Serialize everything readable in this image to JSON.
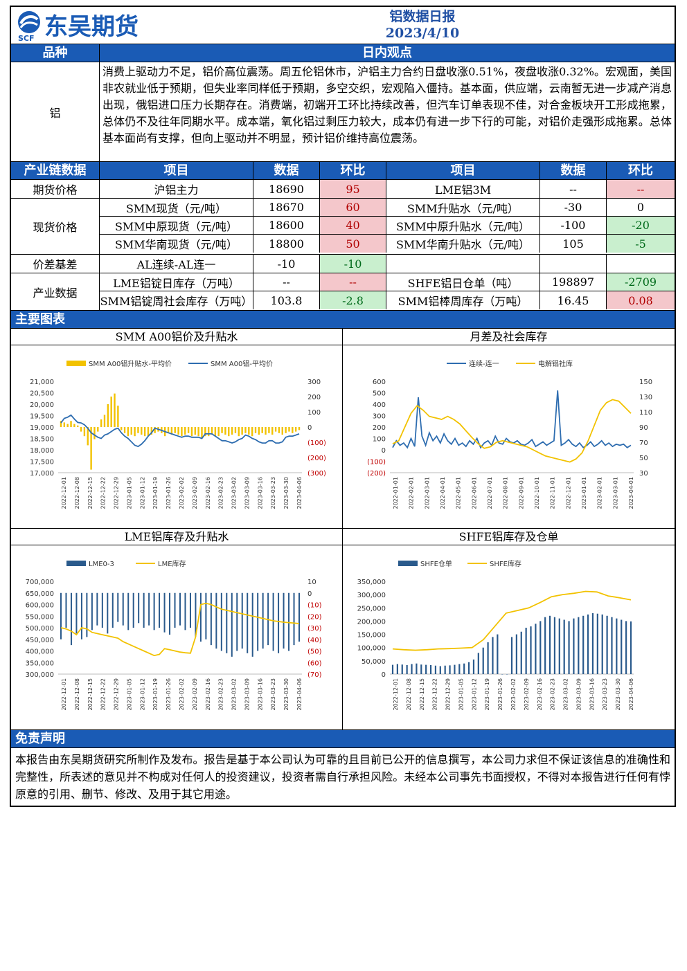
{
  "brand": {
    "name": "东吴期货",
    "abbr": "SCF"
  },
  "report": {
    "title": "铝数据日报",
    "date": "2023/4/10"
  },
  "view_section": {
    "header_left": "品种",
    "header_right": "日内观点",
    "commodity": "铝",
    "text": "消费上驱动力不足，铝价高位震荡。周五伦铝休市，沪铝主力合约日盘收涨0.51%，夜盘收涨0.32%。宏观面，美国非农就业低于预期，但失业率同样低于预期，多空交织，宏观陷入僵持。基本面，供应端，云南暂无进一步减产消息出现，俄铝进口压力长期存在。消费端，初端开工环比持续改善，但汽车订单表现不佳，对合金板块开工形成拖累，总体仍不及往年同期水平。成本端，氧化铝过剩压力较大，成本仍有进一步下行的可能，对铝价走强形成拖累。总体基本面尚有支撑，但向上驱动并不明显，预计铝价维持高位震荡。"
  },
  "data_table": {
    "headers": [
      "产业链数据",
      "项目",
      "数据",
      "环比",
      "项目",
      "数据",
      "环比"
    ],
    "groups": [
      {
        "label": "期货价格",
        "rows": [
          {
            "item1": "沪铝主力",
            "val1": "18690",
            "chg1": "95",
            "c1": "red",
            "item2": "LME铝3M",
            "val2": "--",
            "chg2": "--",
            "c2": "red"
          }
        ]
      },
      {
        "label": "现货价格",
        "rows": [
          {
            "item1": "SMM现货（元/吨）",
            "val1": "18670",
            "chg1": "60",
            "c1": "red",
            "item2": "SMM升贴水（元/吨）",
            "val2": "-30",
            "chg2": "0",
            "c2": ""
          },
          {
            "item1": "SMM中原现货（元/吨）",
            "val1": "18600",
            "chg1": "40",
            "c1": "red",
            "item2": "SMM中原升贴水（元/吨）",
            "val2": "-100",
            "chg2": "-20",
            "c2": "green"
          },
          {
            "item1": "SMM华南现货（元/吨）",
            "val1": "18800",
            "chg1": "50",
            "c1": "red",
            "item2": "SMM华南升贴水（元/吨）",
            "val2": "105",
            "chg2": "-5",
            "c2": "green"
          }
        ]
      },
      {
        "label": "价差基差",
        "rows": [
          {
            "item1": "AL连续-AL连一",
            "val1": "-10",
            "chg1": "-10",
            "c1": "green",
            "item2": "",
            "val2": "",
            "chg2": "",
            "c2": ""
          }
        ]
      },
      {
        "label": "产业数据",
        "rows": [
          {
            "item1": "LME铝锭日库存（万吨）",
            "val1": "--",
            "chg1": "--",
            "c1": "red",
            "item2": "SHFE铝日仓单（吨）",
            "val2": "198897",
            "chg2": "-2709",
            "c2": "green"
          },
          {
            "item1": "SMM铝锭周社会库存（万吨）",
            "val1": "103.8",
            "chg1": "-2.8",
            "c1": "green",
            "item2": "SMM铝棒周库存（万吨）",
            "val2": "16.45",
            "chg2": "0.08",
            "c2": "red"
          }
        ]
      }
    ]
  },
  "charts_section_title": "主要图表",
  "chart_data": [
    {
      "type": "bar+line",
      "title": "SMM A00铝价及升贴水",
      "legend": [
        "SMM A00铝升贴水-平均价",
        "SMM A00铝-平均价"
      ],
      "colors": [
        "#f2c200",
        "#2e6db0"
      ],
      "y_left": [
        17000,
        21000
      ],
      "y_left_ticks": [
        "21,000",
        "20,500",
        "20,000",
        "19,500",
        "19,000",
        "18,500",
        "18,000",
        "17,500",
        "17,000"
      ],
      "y_right": [
        -300,
        300
      ],
      "y_right_ticks": [
        "300",
        "200",
        "100",
        "0",
        "(100)",
        "(200)",
        "(300)"
      ],
      "x_ticks": [
        "2022-12-01",
        "2022-12-08",
        "2022-12-15",
        "2022-12-22",
        "2022-12-29",
        "2023-01-05",
        "2023-01-12",
        "2023-01-19",
        "2023-01-26",
        "2023-02-02",
        "2023-02-09",
        "2023-02-16",
        "2023-02-23",
        "2023-03-02",
        "2023-03-09",
        "2023-03-16",
        "2023-03-23",
        "2023-03-30",
        "2023-04-06"
      ],
      "line": [
        19180,
        19380,
        19430,
        19520,
        19350,
        19200,
        19180,
        19100,
        18950,
        18750,
        18650,
        18550,
        18500,
        18650,
        18700,
        18800,
        18900,
        18950,
        18750,
        18600,
        18500,
        18350,
        18200,
        18150,
        18250,
        18400,
        18600,
        18750,
        18950,
        18900,
        18850,
        18800,
        18750,
        18700,
        18650,
        18600,
        18550,
        18600,
        18600,
        18550,
        18550,
        18550,
        18500,
        18700,
        18700,
        18700,
        18600,
        18500,
        18400,
        18400,
        18350,
        18300,
        18350,
        18450,
        18500,
        18650,
        18600,
        18500,
        18450,
        18350,
        18300,
        18300,
        18400,
        18400,
        18300,
        18300,
        18350,
        18550,
        18600,
        18600,
        18650,
        18700
      ],
      "bars": [
        40,
        30,
        20,
        40,
        20,
        10,
        -30,
        -60,
        -120,
        -280,
        -80,
        -30,
        50,
        80,
        150,
        200,
        220,
        140,
        -20,
        -40,
        -60,
        -50,
        -60,
        -40,
        -50,
        -60,
        -60,
        -50,
        -40,
        -30,
        -40,
        -60,
        -40,
        -50,
        -40,
        -50,
        -60,
        -50,
        -40,
        -60,
        -50,
        -60,
        -70,
        -60,
        -60,
        -50,
        -60,
        -60,
        -40,
        -50,
        -60,
        -50,
        -40,
        -60,
        -50,
        -40,
        -50,
        -60,
        -40,
        -50,
        -40,
        -50,
        -40,
        -50,
        -30,
        -40,
        -50,
        -40,
        -30,
        -40,
        -30,
        -20
      ]
    },
    {
      "type": "line",
      "title": "月差及社会库存",
      "legend": [
        "连续-连一",
        "电解铝社库"
      ],
      "colors": [
        "#2e6db0",
        "#f2c200"
      ],
      "y_left": [
        -200,
        600
      ],
      "y_left_ticks": [
        "600",
        "500",
        "400",
        "300",
        "200",
        "100",
        "0",
        "(100)",
        "(200)"
      ],
      "y_right": [
        30,
        150
      ],
      "y_right_ticks": [
        "150",
        "130",
        "110",
        "90",
        "70",
        "50",
        "30"
      ],
      "x_ticks": [
        "2022-01-01",
        "2022-02-01",
        "2022-03-01",
        "2022-04-01",
        "2022-05-01",
        "2022-06-01",
        "2022-07-01",
        "2022-08-01",
        "2022-09-01",
        "2022-10-01",
        "2022-11-01",
        "2022-12-01",
        "2023-01-01",
        "2023-02-01",
        "2023-03-01",
        "2023-04-01"
      ],
      "line1": [
        20,
        80,
        40,
        60,
        20,
        100,
        30,
        460,
        120,
        40,
        150,
        80,
        120,
        60,
        140,
        80,
        50,
        100,
        40,
        60,
        30,
        80,
        50,
        100,
        20,
        60,
        80,
        40,
        120,
        60,
        50,
        100,
        70,
        60,
        80,
        50,
        40,
        60,
        90,
        30,
        50,
        70,
        40,
        60,
        80,
        520,
        40,
        60,
        90,
        50,
        30,
        60,
        20,
        40,
        70,
        30,
        50,
        80,
        40,
        60,
        30,
        50,
        40,
        50,
        20,
        40
      ],
      "line2": [
        68,
        72,
        90,
        108,
        118,
        112,
        104,
        102,
        100,
        104,
        100,
        94,
        85,
        76,
        68,
        62,
        64,
        70,
        72,
        70,
        68,
        66,
        64,
        60,
        56,
        52,
        50,
        48,
        46,
        44,
        48,
        56,
        72,
        92,
        112,
        122,
        126,
        124,
        116,
        108
      ]
    },
    {
      "type": "bar+line",
      "title": "LME铝库存及升贴水",
      "legend": [
        "LME0-3",
        "LME库存"
      ],
      "colors": [
        "#2a5a8c",
        "#f2c200"
      ],
      "y_left": [
        300000,
        700000
      ],
      "y_left_ticks": [
        "700,000",
        "650,000",
        "600,000",
        "550,000",
        "500,000",
        "450,000",
        "400,000",
        "350,000",
        "300,000"
      ],
      "y_right": [
        -70,
        10
      ],
      "y_right_ticks": [
        "10",
        "0",
        "(10)",
        "(20)",
        "(30)",
        "(40)",
        "(50)",
        "(60)",
        "(70)"
      ],
      "x_ticks": [
        "2022-12-01",
        "2022-12-08",
        "2022-12-15",
        "2022-12-22",
        "2022-12-29",
        "2023-01-05",
        "2023-01-12",
        "2023-01-19",
        "2023-01-26",
        "2023-02-02",
        "2023-02-09",
        "2023-02-16",
        "2023-02-23",
        "2023-03-02",
        "2023-03-09",
        "2023-03-16",
        "2023-03-23",
        "2023-03-30",
        "2023-04-06"
      ],
      "line": [
        500000,
        495000,
        485000,
        470000,
        500000,
        495000,
        480000,
        475000,
        470000,
        465000,
        460000,
        455000,
        440000,
        430000,
        420000,
        410000,
        400000,
        390000,
        380000,
        385000,
        410000,
        405000,
        400000,
        395000,
        392000,
        390000,
        460000,
        600000,
        605000,
        600000,
        590000,
        580000,
        575000,
        570000,
        565000,
        560000,
        555000,
        550000,
        545000,
        540000,
        535000,
        530000,
        527000,
        524000,
        522000,
        520000,
        518000
      ],
      "bars": [
        -40,
        -30,
        -45,
        -35,
        -40,
        -38,
        -32,
        -28,
        -30,
        -35,
        -30,
        -25,
        -28,
        -32,
        -30,
        -26,
        -30,
        -28,
        -32,
        -30,
        -34,
        -36,
        -30,
        -28,
        -32,
        -30,
        -38,
        -42,
        -40,
        -45,
        -48,
        -50,
        -52,
        -55,
        -50,
        -48,
        -52,
        -55,
        -50,
        -48,
        -45,
        -50,
        -52,
        -48,
        -50,
        -45,
        -42
      ]
    },
    {
      "type": "bar+line",
      "title": "SHFE铝库存及仓单",
      "legend": [
        "SHFE仓单",
        "SHFE库存"
      ],
      "colors": [
        "#2a5a8c",
        "#f2c200"
      ],
      "y_left": [
        0,
        350000
      ],
      "y_left_ticks": [
        "350,000",
        "300,000",
        "250,000",
        "200,000",
        "150,000",
        "100,000",
        "50,000",
        "0"
      ],
      "x_ticks": [
        "2022-12-01",
        "2022-12-08",
        "2022-12-15",
        "2022-12-22",
        "2022-12-29",
        "2023-01-05",
        "2023-01-12",
        "2023-01-19",
        "2023-01-26",
        "2023-02-02",
        "2023-02-09",
        "2023-02-16",
        "2023-02-23",
        "2023-03-02",
        "2023-03-09",
        "2023-03-16",
        "2023-03-23",
        "2023-03-30",
        "2023-04-06"
      ],
      "line": [
        95000,
        92000,
        90000,
        92000,
        95000,
        96000,
        98000,
        100000,
        130000,
        180000,
        230000,
        240000,
        250000,
        270000,
        292000,
        300000,
        305000,
        312000,
        310000,
        295000,
        288000,
        280000
      ],
      "bars": [
        35000,
        38000,
        36000,
        34000,
        38000,
        40000,
        36000,
        35000,
        34000,
        32000,
        30000,
        32000,
        33000,
        35000,
        38000,
        40000,
        45000,
        55000,
        80000,
        100000,
        120000,
        140000,
        150000,
        0,
        0,
        140000,
        150000,
        160000,
        175000,
        180000,
        190000,
        200000,
        215000,
        220000,
        215000,
        210000,
        205000,
        200000,
        210000,
        215000,
        220000,
        225000,
        230000,
        228000,
        225000,
        220000,
        215000,
        210000,
        205000,
        200000,
        198897
      ]
    }
  ],
  "disclaimer": {
    "title": "免责声明",
    "text": "本报告由东吴期货研究所制作及发布。报告是基于本公司认为可靠的且目前已公开的信息撰写，本公司力求但不保证该信息的准确性和完整性，所表述的意见并不构成对任何人的投资建议，投资者需自行承担风险。未经本公司事先书面授权，不得对本报告进行任何有悖原意的引用、删节、修改、及用于其它用途。"
  }
}
